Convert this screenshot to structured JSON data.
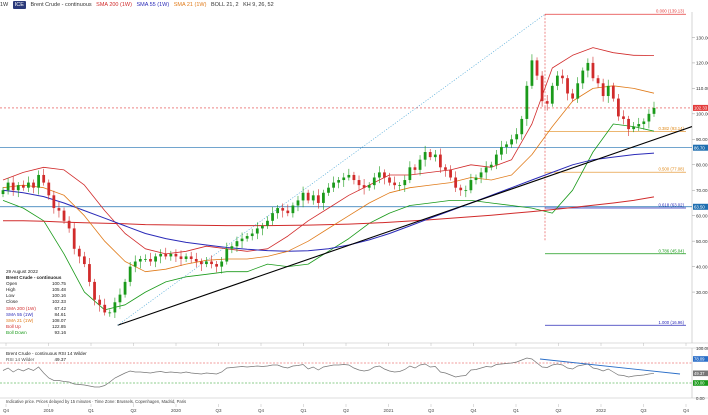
{
  "header": {
    "timeframe": "1W",
    "symbol_badge": "ICE",
    "symbol": "Brent Crude - continuous",
    "indicators": [
      "SMA 200 (1W)",
      "SMA 55 (1W)",
      "SMA 21 (1W)",
      "BOLL 21, 2",
      "KH 9, 26, 52"
    ]
  },
  "info_panel": {
    "date": "29 August 2022",
    "title": "Brent Crude - continuous",
    "rows": [
      {
        "label": "Open",
        "value": "100.75",
        "color": "#222222"
      },
      {
        "label": "High",
        "value": "105.48",
        "color": "#222222"
      },
      {
        "label": "Low",
        "value": "100.16",
        "color": "#222222"
      },
      {
        "label": "Close",
        "value": "102.33",
        "color": "#222222"
      },
      {
        "label": "SMA 200 (1W)",
        "value": "67.42",
        "color": "#d12b2b"
      },
      {
        "label": "SMA 55 (1W)",
        "value": "84.61",
        "color": "#2a2ab8"
      },
      {
        "label": "SMA 21 (1W)",
        "value": "108.07",
        "color": "#e07b1a"
      },
      {
        "label": "Boll Up",
        "value": "122.85",
        "color": "#d12b2b"
      },
      {
        "label": "Boll Down",
        "value": "93.16",
        "color": "#1a9a1a"
      }
    ]
  },
  "rsi_panel": {
    "title": "Brent Crude - continuous  RSI 14 Wilder",
    "label": "RSI 14 Wilder",
    "value": "49.37",
    "ticks": [
      "100.00",
      "50.00",
      "0.00"
    ],
    "right_labels": [
      "78.09",
      "49.37",
      "30.00"
    ]
  },
  "disclaimer": "Indicative price. Prices delayed by 15 minutes · Time Zone: Brussels, Copenhagen, Madrid, Paris",
  "chart_data": {
    "type": "candlestick",
    "interval": "weekly",
    "price_ticks": [
      30,
      40,
      50,
      60,
      70,
      80,
      90,
      100,
      110,
      120,
      130
    ],
    "ylim": [
      10,
      140
    ],
    "x_labels": [
      "Q4",
      "2019",
      "Q1",
      "Q2",
      "2020",
      "Q3",
      "Q4",
      "Q1",
      "Q2",
      "2021",
      "Q3",
      "Q4",
      "Q1",
      "Q2",
      "2022",
      "Q3",
      "Q4"
    ],
    "fib_levels": [
      {
        "label": "0.000 (139.13)",
        "value": 139.13,
        "color": "#e33b3b"
      },
      {
        "label": "0.382 (93.14)",
        "value": 93.14,
        "color": "#e08a1a"
      },
      {
        "label": "0.500 (77.08)",
        "value": 77.08,
        "color": "#e08a1a"
      },
      {
        "label": "0.618 (63.02)",
        "value": 63.02,
        "color": "#2a2ab8"
      },
      {
        "label": "0.786 (45.04)",
        "value": 45.04,
        "color": "#1a9a1a"
      },
      {
        "label": "1.000 (16.96)",
        "value": 16.96,
        "color": "#2a2ab8"
      }
    ],
    "horizontal_levels": [
      {
        "label": "102.33",
        "value": 102.33,
        "color": "#e33b3b",
        "dashed": true
      },
      {
        "label": "86.70",
        "value": 86.7,
        "color": "#1f6fb0",
        "dashed": false
      },
      {
        "label": "63.50",
        "value": 63.5,
        "color": "#1f6fb0",
        "dashed": false
      }
    ],
    "price_series": [
      70,
      73,
      70,
      72,
      71,
      73,
      71,
      76,
      73,
      68,
      63,
      62,
      58,
      55,
      47,
      44,
      41,
      34,
      27,
      25,
      22,
      22,
      26,
      29,
      34,
      40,
      42,
      43,
      43,
      42,
      44,
      45,
      44,
      45,
      44,
      43,
      44,
      43,
      42,
      41,
      42,
      41,
      40,
      42,
      47,
      48,
      50,
      51,
      52,
      53,
      55,
      56,
      58,
      61,
      63,
      62,
      61,
      64,
      66,
      69,
      66,
      68,
      65,
      69,
      71,
      73,
      74,
      75,
      76,
      74,
      72,
      71,
      72,
      75,
      77,
      75,
      73,
      72,
      72,
      74,
      79,
      78,
      82,
      85,
      83,
      84,
      79,
      78,
      75,
      71,
      70,
      70,
      74,
      75,
      77,
      79,
      80,
      84,
      87,
      88,
      90,
      92,
      98,
      111,
      121,
      115,
      105,
      104,
      111,
      115,
      114,
      108,
      106,
      112,
      117,
      120,
      114,
      112,
      107,
      111,
      106,
      99,
      98,
      94,
      95,
      96,
      97,
      100,
      102.33
    ],
    "rsi_series": [
      55,
      60,
      52,
      58,
      54,
      59,
      55,
      62,
      50,
      40,
      35,
      35,
      33,
      32,
      28,
      27,
      26,
      24,
      22,
      22,
      25,
      32,
      40,
      45,
      50,
      54,
      52,
      52,
      51,
      50,
      52,
      53,
      51,
      52,
      51,
      50,
      52,
      50,
      49,
      48,
      50,
      49,
      48,
      52,
      60,
      61,
      62,
      63,
      62,
      63,
      64,
      63,
      64,
      66,
      66,
      62,
      60,
      64,
      65,
      67,
      58,
      62,
      56,
      62,
      64,
      66,
      66,
      67,
      66,
      60,
      56,
      54,
      56,
      62,
      64,
      58,
      54,
      52,
      53,
      57,
      64,
      60,
      66,
      68,
      62,
      63,
      52,
      50,
      46,
      42,
      44,
      45,
      56,
      57,
      60,
      63,
      62,
      67,
      68,
      69,
      70,
      72,
      76,
      80,
      78,
      70,
      62,
      61,
      66,
      68,
      66,
      60,
      58,
      64,
      66,
      68,
      60,
      58,
      54,
      58,
      52,
      46,
      45,
      42,
      44,
      45,
      46,
      48,
      49.37
    ],
    "sma200": [
      58,
      58,
      57.8,
      57.5,
      57.2,
      57,
      56.8,
      56.5,
      56.4,
      56.3,
      56.2,
      56.1,
      56.1,
      56.1,
      56.2,
      56.3,
      56.5,
      56.7,
      57,
      57.4,
      57.9,
      58.4,
      59,
      59.6,
      60.2,
      60.9,
      61.6,
      62.4,
      63.2,
      64.1,
      65,
      66,
      67.4
    ],
    "sma55": [
      70,
      69,
      67.5,
      65,
      62,
      59,
      56,
      53,
      51,
      49.5,
      48.5,
      47.5,
      46.8,
      46.3,
      46,
      46.2,
      47,
      48.5,
      50.5,
      53,
      56,
      59,
      62,
      65,
      68,
      71,
      74,
      77,
      80,
      82,
      83,
      84,
      84.6
    ],
    "sma21": [
      71,
      72,
      71,
      68,
      60,
      50,
      42,
      38,
      39,
      41,
      42.5,
      43,
      43,
      44,
      46,
      50,
      55,
      60,
      65,
      69,
      71,
      72,
      73,
      75,
      74,
      76,
      84,
      95,
      105,
      110,
      111,
      110,
      108.1
    ],
    "boll_up": [
      74,
      77,
      79,
      78,
      72,
      62,
      53,
      47,
      45,
      46,
      48,
      47,
      46,
      47,
      52,
      58,
      63,
      68,
      72,
      76,
      76,
      77,
      78,
      80,
      79,
      82,
      96,
      118,
      123,
      126,
      124,
      123,
      122.9
    ],
    "boll_down": [
      66,
      63,
      58,
      45,
      30,
      23,
      25,
      30,
      34,
      36,
      37,
      38,
      38,
      41,
      40,
      41,
      46,
      51,
      57,
      61,
      64,
      65,
      66,
      66,
      65,
      64,
      63,
      61,
      70,
      85,
      96,
      95,
      93.2
    ],
    "trendline": {
      "x_start_frac": 0.17,
      "y_start": 16.96,
      "x_end_frac": 1.0,
      "y_end": 95
    }
  }
}
